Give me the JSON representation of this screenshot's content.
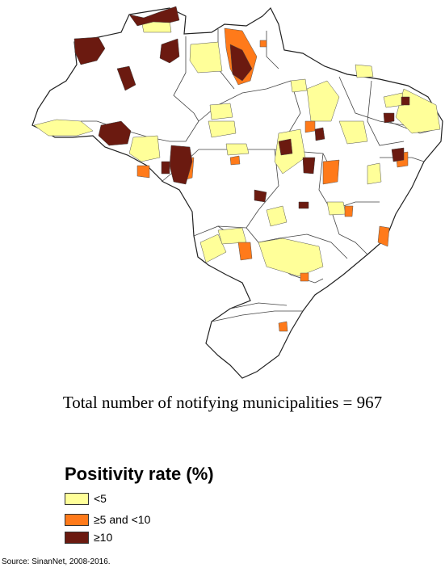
{
  "map": {
    "colors": {
      "low": "#ffff99",
      "mid": "#ff7a1a",
      "high": "#6b1a10",
      "border": "#222222",
      "base": "#ffffff"
    }
  },
  "summary": {
    "total_text": "Total number of notifying municipalities = 967"
  },
  "legend": {
    "title": "Positivity rate (%)",
    "items": [
      {
        "label": "<5",
        "color": "#ffff99"
      },
      {
        "label": "≥5 and <10",
        "color": "#ff7a1a"
      },
      {
        "label": "≥10",
        "color": "#6b1a10"
      }
    ]
  },
  "source": "Source: SinanNet, 2008-2016."
}
